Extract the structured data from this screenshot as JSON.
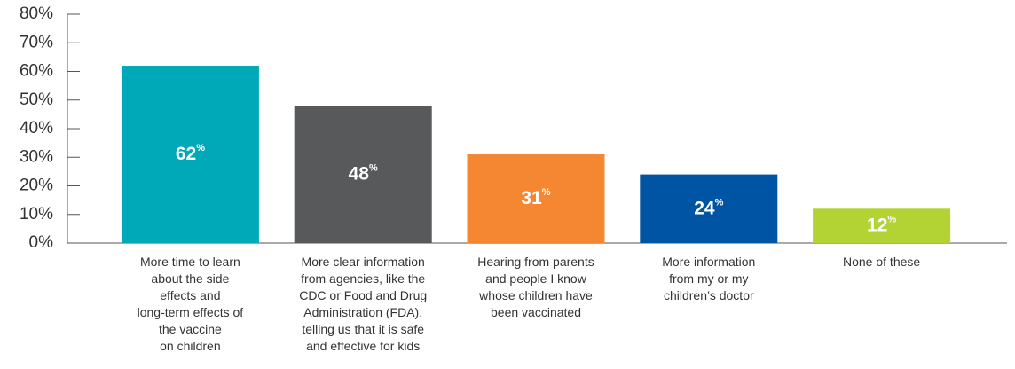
{
  "chart_data": {
    "type": "bar",
    "categories": [
      "More time to learn\nabout the side\neffects and\nlong-term effects of\nthe vaccine\non children",
      "More clear information\nfrom agencies, like the\nCDC or Food and Drug\nAdministration (FDA),\ntelling us that it is safe\nand effective for kids",
      "Hearing from parents\nand people I know\nwhose children have\nbeen vaccinated",
      "More information\nfrom my or my\nchildren’s doctor",
      "None of these"
    ],
    "values": [
      62,
      48,
      31,
      24,
      12
    ],
    "value_labels": [
      "62%",
      "48%",
      "31%",
      "24%",
      "12%"
    ],
    "colors": [
      "#00a9b7",
      "#58595b",
      "#f58733",
      "#0054a4",
      "#b3d234"
    ],
    "ylim": [
      0,
      80
    ],
    "yticks": [
      {
        "value": 0,
        "label": "0%"
      },
      {
        "value": 10,
        "label": "10%"
      },
      {
        "value": 20,
        "label": "20%"
      },
      {
        "value": 30,
        "label": "30%"
      },
      {
        "value": 40,
        "label": "40%"
      },
      {
        "value": 50,
        "label": "50%"
      },
      {
        "value": 60,
        "label": "60%"
      },
      {
        "value": 70,
        "label": "70%"
      },
      {
        "value": 80,
        "label": "80%"
      }
    ]
  }
}
